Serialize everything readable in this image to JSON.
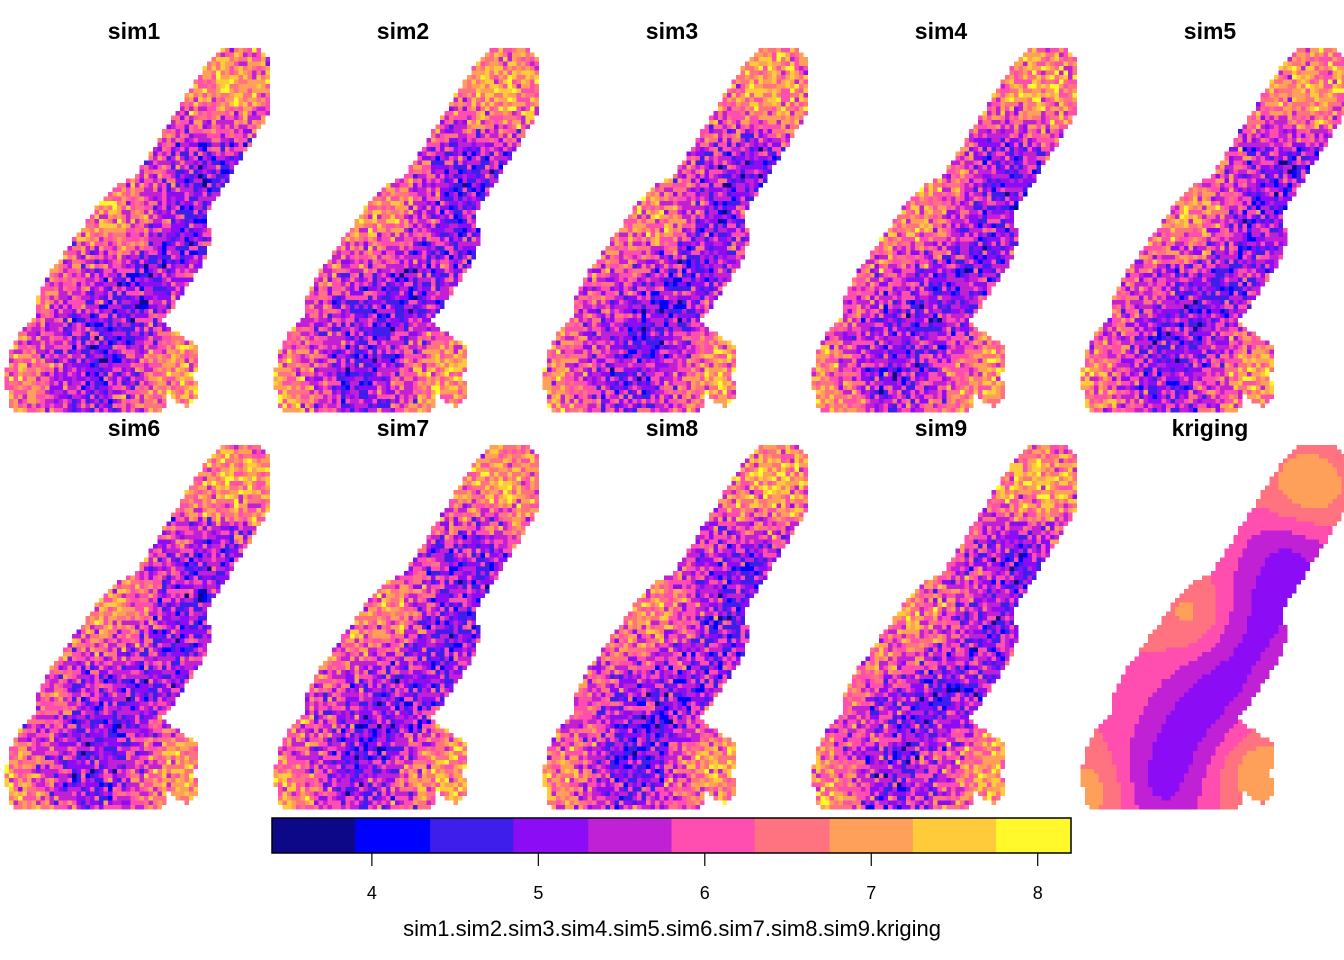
{
  "panels": [
    {
      "title": "sim1",
      "kind": "simulation",
      "seed": 11
    },
    {
      "title": "sim2",
      "kind": "simulation",
      "seed": 23
    },
    {
      "title": "sim3",
      "kind": "simulation",
      "seed": 37
    },
    {
      "title": "sim4",
      "kind": "simulation",
      "seed": 41
    },
    {
      "title": "sim5",
      "kind": "simulation",
      "seed": 53
    },
    {
      "title": "sim6",
      "kind": "simulation",
      "seed": 67
    },
    {
      "title": "sim7",
      "kind": "simulation",
      "seed": 79
    },
    {
      "title": "sim8",
      "kind": "simulation",
      "seed": 83
    },
    {
      "title": "sim9",
      "kind": "simulation",
      "seed": 97
    },
    {
      "title": "kriging",
      "kind": "smooth",
      "seed": 5
    }
  ],
  "legend": {
    "title": "sim1.sim2.sim3.sim4.sim5.sim6.sim7.sim8.sim9.kriging",
    "bin_breaks": [
      3.4,
      3.9,
      4.35,
      4.85,
      5.3,
      5.8,
      6.3,
      6.75,
      7.25,
      7.75,
      8.2
    ],
    "colors": [
      "#0D0887",
      "#0000FF",
      "#3D1EEA",
      "#8C0DF5",
      "#C021D4",
      "#FF4DB0",
      "#FF7380",
      "#FFA05A",
      "#FFCB3A",
      "#FFF82A"
    ],
    "ticks": [
      4,
      5,
      6,
      7,
      8
    ]
  }
}
